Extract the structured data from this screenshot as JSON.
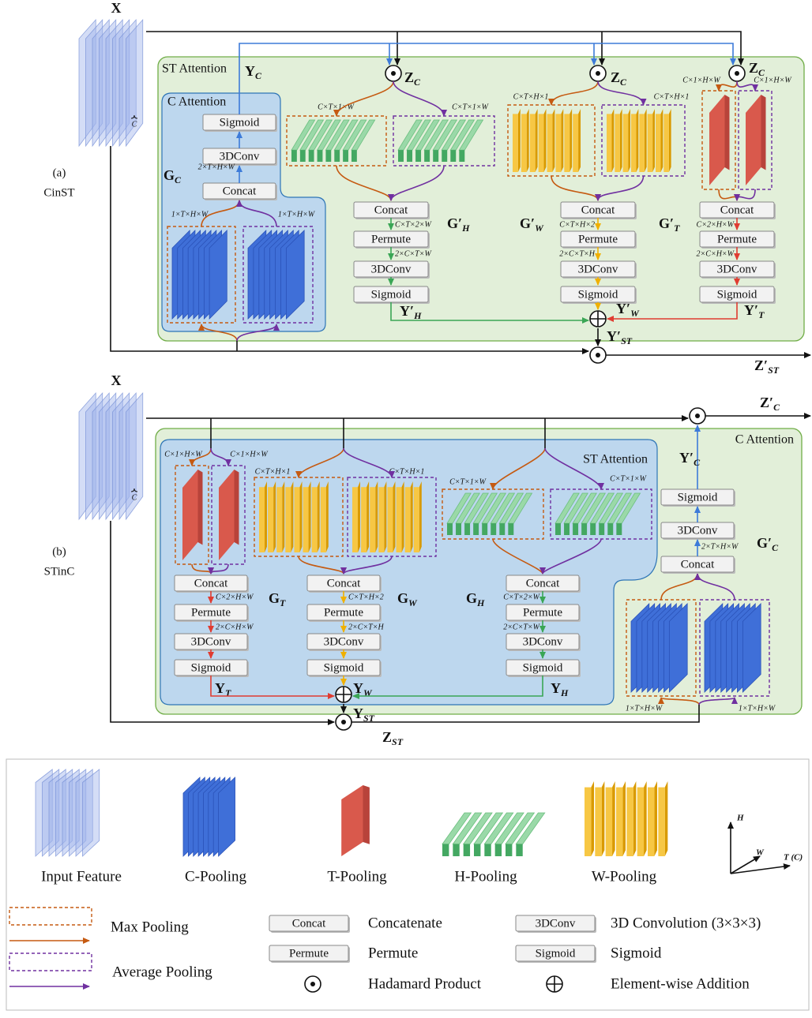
{
  "panel_a": {
    "label": "(a)",
    "name": "CinST",
    "input": "X",
    "channel": "C",
    "st_title": "ST Attention",
    "c_title": "C Attention",
    "c_branch": {
      "output": {
        "main": "Y",
        "sub": "C"
      },
      "ops": [
        "Sigmoid",
        "3DConv",
        "Concat"
      ],
      "gate": {
        "main": "G",
        "sub": "C"
      },
      "concat_dims": "2×T×H×W",
      "pool_dims": [
        "1×T×H×W",
        "1×T×H×W"
      ]
    },
    "products": [
      {
        "main": "Z",
        "sub": "C"
      },
      {
        "main": "Z",
        "sub": "C"
      },
      {
        "main": "Z",
        "sub": "C"
      }
    ],
    "branches": [
      {
        "pool_dims": [
          "C×T×1×W",
          "C×T×1×W"
        ],
        "ops": [
          "Concat",
          "Permute",
          "3DConv",
          "Sigmoid"
        ],
        "dims": [
          "C×T×2×W",
          "2×C×T×W"
        ],
        "gate": {
          "main": "G′",
          "sub": "H"
        },
        "output": {
          "main": "Y′",
          "sub": "H"
        }
      },
      {
        "pool_dims": [
          "C×T×H×1",
          "C×T×H×1"
        ],
        "ops": [
          "Concat",
          "Permute",
          "3DConv",
          "Sigmoid"
        ],
        "dims": [
          "C×T×H×2",
          "2×C×T×H"
        ],
        "gate": {
          "main": "G′",
          "sub": "W"
        },
        "output": {
          "main": "Y′",
          "sub": "W"
        }
      },
      {
        "pool_dims": [
          "C×1×H×W",
          "C×1×H×W"
        ],
        "ops": [
          "Concat",
          "Permute",
          "3DConv",
          "Sigmoid"
        ],
        "dims": [
          "C×2×H×W",
          "2×C×H×W"
        ],
        "gate": {
          "main": "G′",
          "sub": "T"
        },
        "output": {
          "main": "Y′",
          "sub": "T"
        }
      }
    ],
    "sum": {
      "main": "Y′",
      "sub": "ST"
    },
    "result": {
      "main": "Z′",
      "sub": "ST"
    }
  },
  "panel_b": {
    "label": "(b)",
    "name": "STinC",
    "input": "X",
    "channel": "C",
    "st_title": "ST Attention",
    "c_title": "C Attention",
    "branches": [
      {
        "pool_dims": [
          "C×1×H×W",
          "C×1×H×W"
        ],
        "ops": [
          "Concat",
          "Permute",
          "3DConv",
          "Sigmoid"
        ],
        "dims": [
          "C×2×H×W",
          "2×C×H×W"
        ],
        "gate": {
          "main": "G",
          "sub": "T"
        },
        "output": {
          "main": "Y",
          "sub": "T"
        }
      },
      {
        "pool_dims": [
          "C×T×H×1",
          "C×T×H×1"
        ],
        "ops": [
          "Concat",
          "Permute",
          "3DConv",
          "Sigmoid"
        ],
        "dims": [
          "C×T×H×2",
          "2×C×T×H"
        ],
        "gate": {
          "main": "G",
          "sub": "W"
        },
        "output": {
          "main": "Y",
          "sub": "W"
        }
      },
      {
        "pool_dims": [
          "C×T×1×W",
          "C×T×1×W"
        ],
        "ops": [
          "Concat",
          "Permute",
          "3DConv",
          "Sigmoid"
        ],
        "dims": [
          "C×T×2×W",
          "2×C×T×W"
        ],
        "gate": {
          "main": "G",
          "sub": "H"
        },
        "output": {
          "main": "Y",
          "sub": "H"
        }
      }
    ],
    "sum": {
      "main": "Y",
      "sub": "ST"
    },
    "sum_product": {
      "main": "Z",
      "sub": "ST"
    },
    "c_branch": {
      "ops": [
        "Sigmoid",
        "3DConv",
        "Concat"
      ],
      "concat_dims": "2×T×H×W",
      "gate": {
        "main": "G′",
        "sub": "C"
      },
      "output": {
        "main": "Y′",
        "sub": "C"
      },
      "pool_dims": [
        "1×T×H×W",
        "1×T×H×W"
      ]
    },
    "result": {
      "main": "Z′",
      "sub": "C"
    }
  },
  "legend": {
    "shapes": [
      "Input Feature",
      "C-Pooling",
      "T-Pooling",
      "H-Pooling",
      "W-Pooling"
    ],
    "axes": [
      "H",
      "W",
      "T (C)"
    ],
    "pooling": [
      "Max Pooling",
      "Average Pooling"
    ],
    "ops": [
      {
        "box": "Concat",
        "text": "Concatenate"
      },
      {
        "box": "Permute",
        "text": "Permute"
      },
      {
        "box": "3DConv",
        "text": "3D Convolution (3×3×3)"
      },
      {
        "box": "Sigmoid",
        "text": "Sigmoid"
      }
    ],
    "symbols": [
      "Hadamard Product",
      "Element-wise Addition"
    ]
  }
}
